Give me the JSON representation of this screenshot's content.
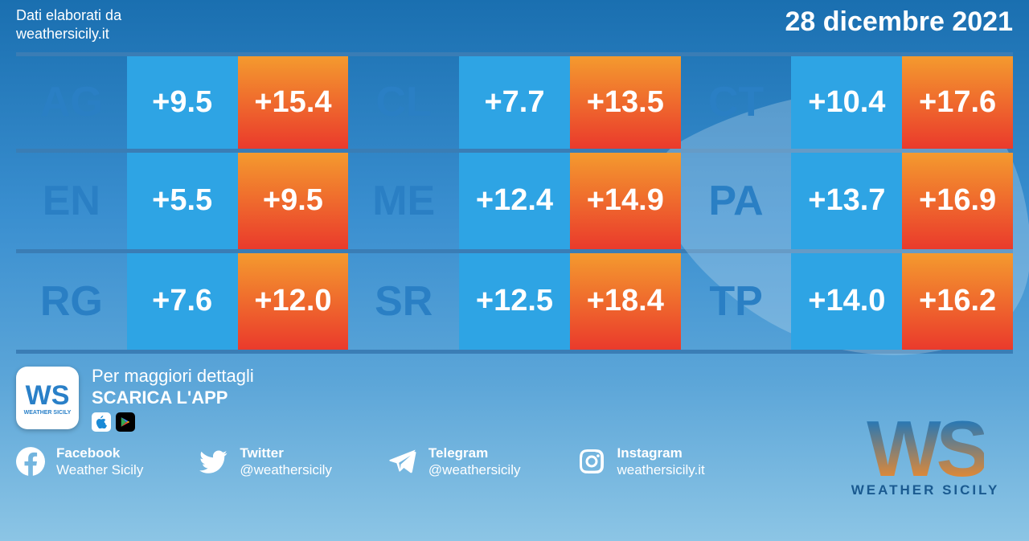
{
  "header": {
    "source_line1": "Dati elaborati da",
    "source_line2": "weathersicily.it",
    "date": "28 dicembre 2021"
  },
  "grid": {
    "row_border_color": "#3a7db5",
    "rows": [
      [
        {
          "kind": "code",
          "text": "AG",
          "bg": "transparent",
          "fg": "#2a7fc4"
        },
        {
          "kind": "low",
          "text": "+9.5",
          "bg": "#2ea4e4",
          "fg": "#ffffff"
        },
        {
          "kind": "high",
          "text": "+15.4",
          "bg_top": "#f49a2e",
          "bg_bot": "#ea3a2c",
          "fg": "#ffffff"
        },
        {
          "kind": "code",
          "text": "CL",
          "bg": "transparent",
          "fg": "#2a7fc4"
        },
        {
          "kind": "low",
          "text": "+7.7",
          "bg": "#2ea4e4",
          "fg": "#ffffff"
        },
        {
          "kind": "high",
          "text": "+13.5",
          "bg_top": "#f49a2e",
          "bg_bot": "#ea3a2c",
          "fg": "#ffffff"
        },
        {
          "kind": "code",
          "text": "CT",
          "bg": "transparent",
          "fg": "#2a7fc4"
        },
        {
          "kind": "low",
          "text": "+10.4",
          "bg": "#2ea4e4",
          "fg": "#ffffff"
        },
        {
          "kind": "high",
          "text": "+17.6",
          "bg_top": "#f49a2e",
          "bg_bot": "#ea3a2c",
          "fg": "#ffffff"
        }
      ],
      [
        {
          "kind": "code",
          "text": "EN",
          "bg": "transparent",
          "fg": "#2a7fc4"
        },
        {
          "kind": "low",
          "text": "+5.5",
          "bg": "#2ea4e4",
          "fg": "#ffffff"
        },
        {
          "kind": "high",
          "text": "+9.5",
          "bg_top": "#f49a2e",
          "bg_bot": "#ea3a2c",
          "fg": "#ffffff"
        },
        {
          "kind": "code",
          "text": "ME",
          "bg": "transparent",
          "fg": "#2a7fc4"
        },
        {
          "kind": "low",
          "text": "+12.4",
          "bg": "#2ea4e4",
          "fg": "#ffffff"
        },
        {
          "kind": "high",
          "text": "+14.9",
          "bg_top": "#f49a2e",
          "bg_bot": "#ea3a2c",
          "fg": "#ffffff"
        },
        {
          "kind": "code",
          "text": "PA",
          "bg": "transparent",
          "fg": "#2a7fc4"
        },
        {
          "kind": "low",
          "text": "+13.7",
          "bg": "#2ea4e4",
          "fg": "#ffffff"
        },
        {
          "kind": "high",
          "text": "+16.9",
          "bg_top": "#f49a2e",
          "bg_bot": "#ea3a2c",
          "fg": "#ffffff"
        }
      ],
      [
        {
          "kind": "code",
          "text": "RG",
          "bg": "transparent",
          "fg": "#2a7fc4"
        },
        {
          "kind": "low",
          "text": "+7.6",
          "bg": "#2ea4e4",
          "fg": "#ffffff"
        },
        {
          "kind": "high",
          "text": "+12.0",
          "bg_top": "#f49a2e",
          "bg_bot": "#ea3a2c",
          "fg": "#ffffff"
        },
        {
          "kind": "code",
          "text": "SR",
          "bg": "transparent",
          "fg": "#2a7fc4"
        },
        {
          "kind": "low",
          "text": "+12.5",
          "bg": "#2ea4e4",
          "fg": "#ffffff"
        },
        {
          "kind": "high",
          "text": "+18.4",
          "bg_top": "#f49a2e",
          "bg_bot": "#ea3a2c",
          "fg": "#ffffff"
        },
        {
          "kind": "code",
          "text": "TP",
          "bg": "transparent",
          "fg": "#2a7fc4"
        },
        {
          "kind": "low",
          "text": "+14.0",
          "bg": "#2ea4e4",
          "fg": "#ffffff"
        },
        {
          "kind": "high",
          "text": "+16.2",
          "bg_top": "#f49a2e",
          "bg_bot": "#ea3a2c",
          "fg": "#ffffff"
        }
      ]
    ]
  },
  "promo": {
    "line1": "Per maggiori dettagli",
    "line2": "SCARICA L'APP",
    "app_icon_text": "WS",
    "app_icon_sub": "WEATHER SICILY"
  },
  "socials": [
    {
      "icon": "facebook",
      "name": "Facebook",
      "handle": "Weather Sicily"
    },
    {
      "icon": "twitter",
      "name": "Twitter",
      "handle": "@weathersicily"
    },
    {
      "icon": "telegram",
      "name": "Telegram",
      "handle": "@weathersicily"
    },
    {
      "icon": "instagram",
      "name": "Instagram",
      "handle": "weathersicily.it"
    }
  ],
  "logo": {
    "main": "WS",
    "sub": "Weather Sicily"
  }
}
